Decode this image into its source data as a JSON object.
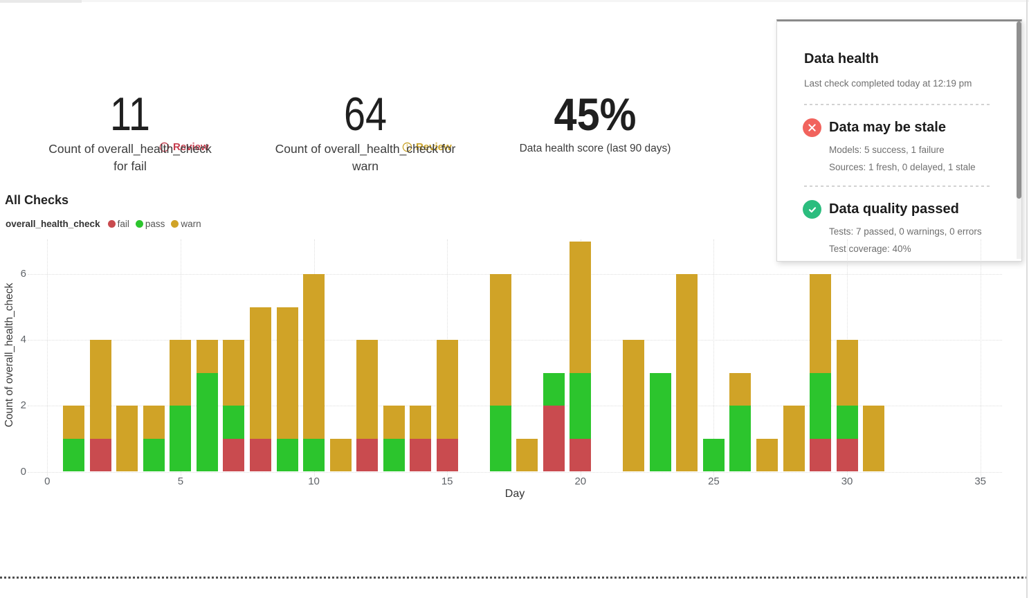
{
  "metrics": [
    {
      "value": "11",
      "label_lines": [
        "Count of overall_health_check",
        "for fail"
      ],
      "review_label": "Review",
      "review_color": "#C63C4D"
    },
    {
      "value": "64",
      "label_lines": [
        "Count of overall_health_check for",
        "warn"
      ],
      "review_label": "Review",
      "review_color": "#C9A227"
    },
    {
      "value": "45%",
      "label_lines": [
        "Data health score (last 90 days)"
      ]
    }
  ],
  "data_health_panel": {
    "title": "Data health",
    "subtitle": "Last check completed today at 12:19 pm",
    "sections": [
      {
        "status": "error",
        "icon_color": "#F1635D",
        "title": "Data may be stale",
        "lines": [
          "Models: 5 success, 1 failure",
          "Sources: 1 fresh, 0 delayed, 1 stale"
        ]
      },
      {
        "status": "success",
        "icon_color": "#2BBD7E",
        "title": "Data quality passed",
        "lines": [
          "Tests: 7 passed, 0 warnings, 0 errors",
          "Test coverage: 40%"
        ]
      }
    ]
  },
  "all_checks": {
    "title": "All Checks",
    "legend_title": "overall_health_check"
  },
  "chart_data": {
    "type": "bar",
    "stacked": true,
    "title": "All Checks",
    "xlabel": "Day",
    "ylabel": "Count of overall_health_check",
    "xticks": [
      0,
      5,
      10,
      15,
      20,
      25,
      30,
      35
    ],
    "yticks": [
      0,
      2,
      4,
      6
    ],
    "xlim": [
      0,
      35.8
    ],
    "ylim": [
      0,
      7.1
    ],
    "grid": "dotted",
    "legend_position": "top-left",
    "days": [
      1,
      2,
      3,
      4,
      5,
      6,
      7,
      8,
      9,
      10,
      11,
      12,
      13,
      14,
      15,
      16,
      17,
      18,
      19,
      20,
      21,
      22,
      23,
      24,
      25,
      26,
      27,
      28,
      29,
      30,
      31
    ],
    "series": [
      {
        "name": "fail",
        "color": "#C94B4F",
        "values": [
          0,
          1,
          0,
          0,
          0,
          0,
          1,
          1,
          0,
          0,
          0,
          1,
          0,
          1,
          1,
          0,
          0,
          0,
          2,
          1,
          0,
          0,
          0,
          0,
          0,
          0,
          0,
          0,
          1,
          1,
          0
        ]
      },
      {
        "name": "pass",
        "color": "#2CC52D",
        "values": [
          1,
          0,
          0,
          1,
          2,
          3,
          1,
          0,
          1,
          1,
          0,
          0,
          1,
          0,
          0,
          0,
          2,
          0,
          1,
          2,
          0,
          0,
          3,
          0,
          1,
          2,
          0,
          0,
          2,
          1,
          0
        ]
      },
      {
        "name": "warn",
        "color": "#D0A327",
        "values": [
          1,
          3,
          2,
          1,
          2,
          1,
          2,
          4,
          4,
          5,
          1,
          3,
          1,
          1,
          3,
          0,
          4,
          1,
          0,
          4,
          0,
          4,
          0,
          6,
          0,
          1,
          1,
          2,
          3,
          2,
          2
        ]
      }
    ]
  }
}
